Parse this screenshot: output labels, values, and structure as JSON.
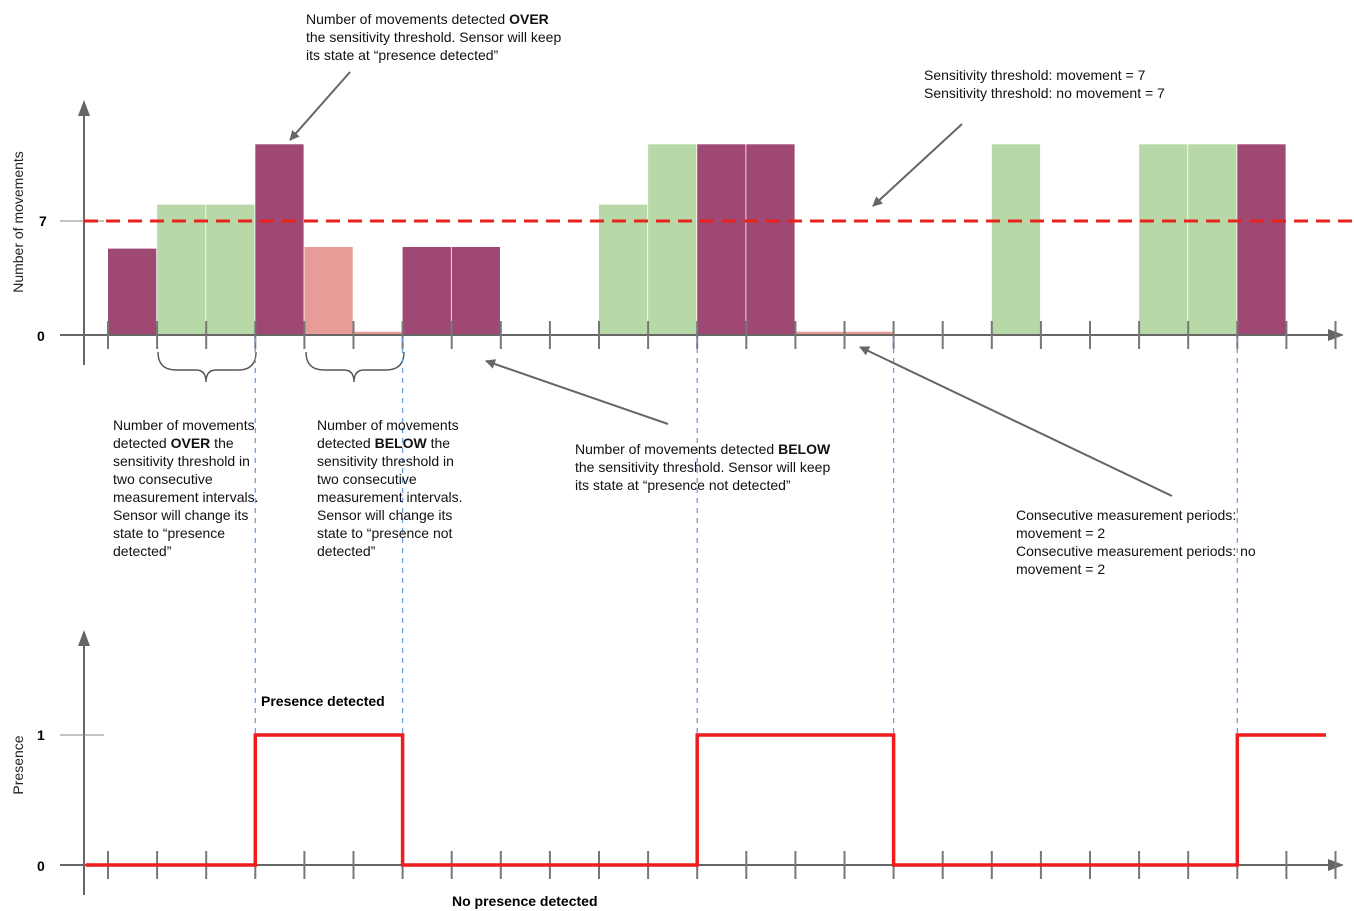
{
  "colors": {
    "movement_over": "#9f4873",
    "movement_over_confirming": "#b7d9a8",
    "movement_below_confirming": "#e89c98",
    "threshold_line": "#e8221c",
    "presence_line": "#ee1c1c",
    "guide_line": "#6c9ee8",
    "axis": "#666666",
    "arrow": "#666666"
  },
  "top_chart": {
    "ylabel": "Number of movements",
    "ytick_7": "7",
    "ytick_0": "0",
    "threshold": 7,
    "interval_count": 25,
    "bars": [
      {
        "interval": 0,
        "value": 5.3,
        "kind": "over_or_below"
      },
      {
        "interval": 1,
        "value": 8,
        "kind": "confirming"
      },
      {
        "interval": 2,
        "value": 8,
        "kind": "confirming"
      },
      {
        "interval": 3,
        "value": 11.7,
        "kind": "over"
      },
      {
        "interval": 4,
        "value": 5.4,
        "kind": "below_confirming"
      },
      {
        "interval": 5,
        "value": 0.2,
        "kind": "below_confirming"
      },
      {
        "interval": 6,
        "value": 5.4,
        "kind": "over"
      },
      {
        "interval": 7,
        "value": 5.4,
        "kind": "over"
      },
      {
        "interval": 10,
        "value": 8,
        "kind": "confirming"
      },
      {
        "interval": 11,
        "value": 11.7,
        "kind": "confirming"
      },
      {
        "interval": 12,
        "value": 11.7,
        "kind": "over"
      },
      {
        "interval": 13,
        "value": 11.7,
        "kind": "over"
      },
      {
        "interval": 14,
        "value": 0.2,
        "kind": "below_confirming"
      },
      {
        "interval": 15,
        "value": 0.2,
        "kind": "below_confirming"
      },
      {
        "interval": 18,
        "value": 11.7,
        "kind": "confirming"
      },
      {
        "interval": 21,
        "value": 11.7,
        "kind": "confirming"
      },
      {
        "interval": 22,
        "value": 11.7,
        "kind": "confirming"
      },
      {
        "interval": 23,
        "value": 11.7,
        "kind": "over"
      }
    ]
  },
  "bottom_chart": {
    "ylabel": "Presence",
    "ytick_1": "1",
    "ytick_0": "0",
    "states": [
      {
        "from": 0,
        "to": 3,
        "value": 0
      },
      {
        "from": 3,
        "to": 6,
        "value": 1
      },
      {
        "from": 6,
        "to": 12,
        "value": 0
      },
      {
        "from": 12,
        "to": 16,
        "value": 1
      },
      {
        "from": 16,
        "to": 23,
        "value": 0
      },
      {
        "from": 23,
        "to": 25,
        "value": 1
      }
    ],
    "label_high": "Presence detected",
    "label_low": "No presence detected"
  },
  "guide_intervals": [
    3,
    6,
    12,
    16,
    23
  ],
  "annotations": {
    "over_keep": {
      "line1": "Number of movements detected ",
      "line1_bold": "OVER",
      "rest": "the sensitivity threshold. Sensor will keep\nits state at “presence detected”"
    },
    "thresholds": "Sensitivity threshold: movement = 7\nSensitivity threshold: no movement = 7",
    "over_change": {
      "pre": "Number of movements\ndetected ",
      "bold": "OVER",
      "post": " the\nsensitivity threshold in\ntwo consecutive\nmeasurement intervals.\nSensor will change its\nstate to “presence\ndetected”"
    },
    "below_change": {
      "pre": "Number of movements\ndetected ",
      "bold": "BELOW",
      "post": " the\nsensitivity threshold in\ntwo consecutive\nmeasurement intervals.\nSensor will change its\nstate to “presence not\ndetected”"
    },
    "below_keep": {
      "pre": "Number of movements detected ",
      "bold": "BELOW",
      "post": "\nthe sensitivity threshold. Sensor will keep\nits state at “presence not detected”"
    },
    "periods": "Consecutive measurement periods:\nmovement = 2\nConsecutive measurement periods: no\nmovement = 2"
  }
}
